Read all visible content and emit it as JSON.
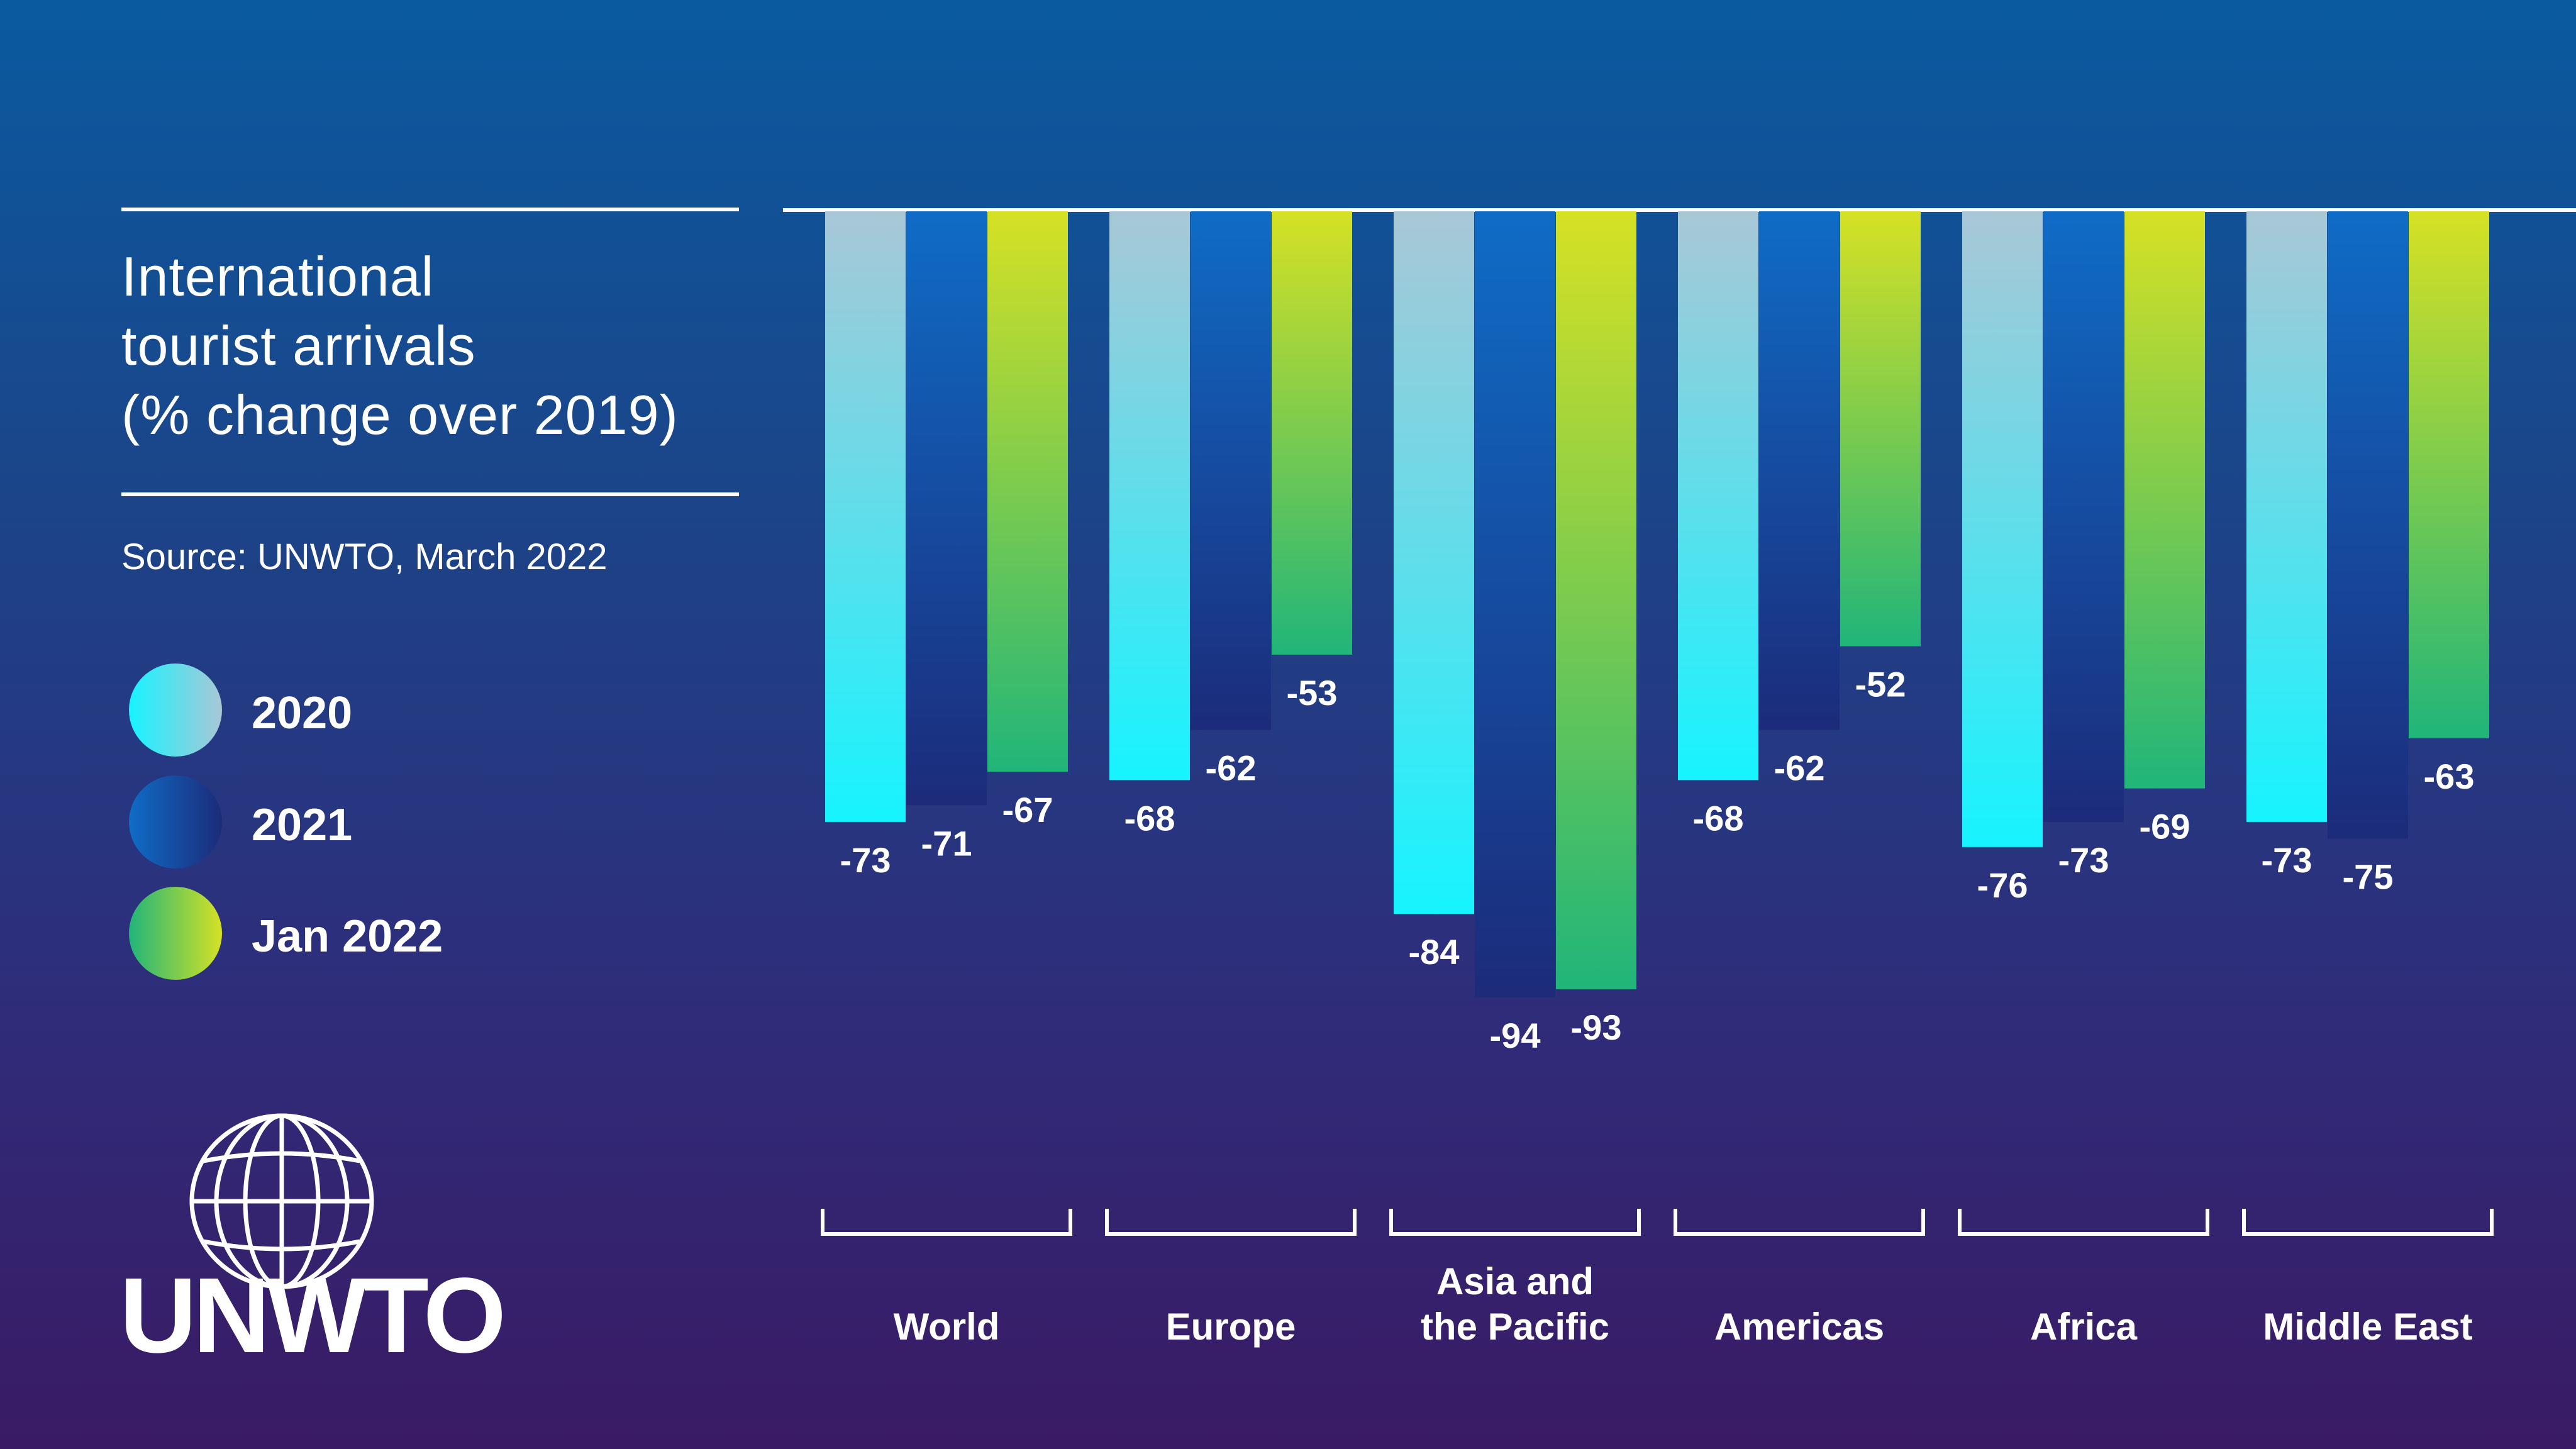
{
  "title_lines": [
    "International",
    "tourist arrivals",
    "(% change over 2019)"
  ],
  "source": "Source: UNWTO, March 2022",
  "logo_text": "UNWTO",
  "chart_data": {
    "type": "bar",
    "title": "International tourist arrivals (% change over 2019)",
    "categories": [
      "World",
      "Europe",
      "Asia and the Pacific",
      "Americas",
      "Africa",
      "Middle East"
    ],
    "category_label_lines": [
      [
        "World"
      ],
      [
        "Europe"
      ],
      [
        "Asia and",
        "the Pacific"
      ],
      [
        "Americas"
      ],
      [
        "Africa"
      ],
      [
        "Middle East"
      ]
    ],
    "series": [
      {
        "name": "2020",
        "values": [
          -73,
          -68,
          -84,
          -68,
          -76,
          -73
        ],
        "gradient": [
          "#16f4ff",
          "#a9c7d6"
        ]
      },
      {
        "name": "2021",
        "values": [
          -71,
          -62,
          -94,
          -62,
          -73,
          -75
        ],
        "gradient": [
          "#0f6cc6",
          "#1c2b7a"
        ]
      },
      {
        "name": "Jan 2022",
        "values": [
          -67,
          -53,
          -93,
          -52,
          -69,
          -63
        ],
        "gradient": [
          "#d6e124",
          "#20b57a"
        ]
      }
    ],
    "value_labels": [
      [
        "-73",
        "-71",
        "-67"
      ],
      [
        "-68",
        "-62",
        "-53"
      ],
      [
        "-84",
        "-94",
        "-93"
      ],
      [
        "-68",
        "-62",
        "-52"
      ],
      [
        "-76",
        "-73",
        "-69"
      ],
      [
        "-73",
        "-75",
        "-63"
      ]
    ],
    "ylim": [
      -100,
      0
    ],
    "legend_position": "left",
    "grid": false
  }
}
